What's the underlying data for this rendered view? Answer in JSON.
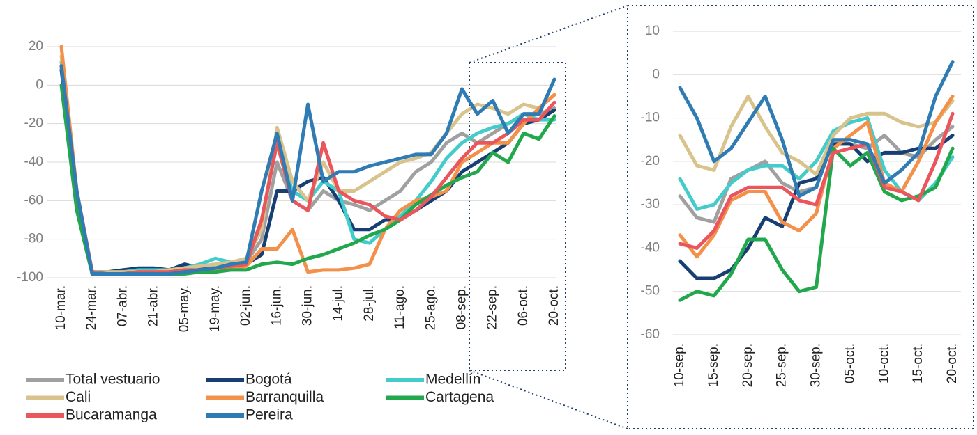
{
  "chart_data": [
    {
      "type": "line",
      "categories": [
        "10-mar.",
        null,
        "24-mar.",
        null,
        "07-abr.",
        null,
        "21-abr.",
        null,
        "05-may.",
        null,
        "19-may.",
        null,
        "02-jun.",
        null,
        "16-jun.",
        null,
        "30-jun.",
        null,
        "14-jul.",
        null,
        "28-jul.",
        null,
        "11-ago.",
        null,
        "25-ago.",
        null,
        "08-sep.",
        null,
        "22-sep.",
        null,
        "06-oct.",
        null,
        "20-oct."
      ],
      "ylim": [
        -100,
        20
      ],
      "yticks": [
        -100,
        -80,
        -60,
        -40,
        -20,
        0,
        20
      ],
      "grid": true,
      "series": [
        {
          "name": "Total vestuario",
          "color": "#a0a0a0",
          "values": [
            10,
            -60,
            -97,
            -97,
            -97,
            -97,
            -97,
            -97,
            -96,
            -95,
            -95,
            -94,
            -92,
            -80,
            -40,
            -60,
            -65,
            -55,
            -60,
            -62,
            -65,
            -60,
            -55,
            -45,
            -40,
            -30,
            -25,
            -30,
            -25,
            -20,
            -15,
            -15,
            -12
          ]
        },
        {
          "name": "Bogotá",
          "color": "#173f74",
          "values": [
            8,
            -60,
            -98,
            -97,
            -96,
            -95,
            -95,
            -96,
            -93,
            -95,
            -95,
            -94,
            -93,
            -88,
            -55,
            -55,
            -50,
            -48,
            -60,
            -75,
            -75,
            -70,
            -70,
            -65,
            -60,
            -55,
            -45,
            -40,
            -35,
            -30,
            -20,
            -18,
            -13
          ]
        },
        {
          "name": "Medellín",
          "color": "#44cccb",
          "values": [
            12,
            -55,
            -97,
            -97,
            -97,
            -96,
            -96,
            -96,
            -95,
            -93,
            -90,
            -92,
            -92,
            -70,
            -30,
            -55,
            -60,
            -50,
            -55,
            -80,
            -82,
            -75,
            -68,
            -60,
            -50,
            -38,
            -30,
            -25,
            -22,
            -20,
            -15,
            -18,
            -18
          ]
        },
        {
          "name": "Cali",
          "color": "#d8c38c",
          "values": [
            15,
            -58,
            -98,
            -97,
            -97,
            -97,
            -97,
            -96,
            -95,
            -94,
            -93,
            -92,
            -90,
            -75,
            -22,
            -50,
            -60,
            -40,
            -55,
            -55,
            -50,
            -45,
            -40,
            -38,
            -35,
            -25,
            -15,
            -10,
            -12,
            -15,
            -10,
            -12,
            -5
          ]
        },
        {
          "name": "Barranquilla",
          "color": "#f39049",
          "values": [
            20,
            -55,
            -98,
            -98,
            -98,
            -97,
            -97,
            -97,
            -97,
            -96,
            -96,
            -95,
            -94,
            -85,
            -85,
            -75,
            -97,
            -96,
            -96,
            -95,
            -93,
            -75,
            -65,
            -60,
            -58,
            -55,
            -40,
            -35,
            -30,
            -30,
            -20,
            -12,
            -5
          ]
        },
        {
          "name": "Cartagena",
          "color": "#21a84d",
          "values": [
            0,
            -65,
            -98,
            -98,
            -98,
            -98,
            -98,
            -98,
            -98,
            -97,
            -97,
            -96,
            -96,
            -93,
            -92,
            -93,
            -90,
            -88,
            -85,
            -82,
            -78,
            -75,
            -70,
            -62,
            -57,
            -52,
            -48,
            -45,
            -35,
            -40,
            -25,
            -28,
            -16
          ]
        },
        {
          "name": "Bucaramanga",
          "color": "#e9565c",
          "values": [
            10,
            -55,
            -97,
            -98,
            -98,
            -97,
            -97,
            -97,
            -96,
            -96,
            -95,
            -94,
            -93,
            -70,
            -30,
            -60,
            -65,
            -30,
            -55,
            -60,
            -62,
            -68,
            -70,
            -65,
            -58,
            -48,
            -38,
            -30,
            -30,
            -25,
            -18,
            -18,
            -9
          ]
        },
        {
          "name": "Pereira",
          "color": "#2f7bb4",
          "values": [
            10,
            -55,
            -98,
            -98,
            -98,
            -98,
            -98,
            -98,
            -97,
            -96,
            -95,
            -93,
            -92,
            -55,
            -25,
            -60,
            -10,
            -50,
            -45,
            -45,
            -42,
            -40,
            -38,
            -36,
            -36,
            -25,
            -2,
            -15,
            -8,
            -25,
            -15,
            -15,
            3
          ]
        }
      ]
    },
    {
      "type": "line",
      "categories": [
        "10-sep.",
        null,
        "15-sep.",
        null,
        "20-sep.",
        null,
        "25-sep.",
        null,
        "30-sep.",
        null,
        "05-oct.",
        null,
        "10-oct.",
        null,
        "15-oct.",
        null,
        "20-oct."
      ],
      "ylim": [
        -60,
        10
      ],
      "yticks": [
        -60,
        -50,
        -40,
        -30,
        -20,
        -10,
        0,
        10
      ],
      "grid": true,
      "series": [
        {
          "color": "#a0a0a0",
          "values": [
            -28,
            -33,
            -34,
            -24,
            -22,
            -20,
            -25,
            -27,
            -26,
            -15,
            -16,
            -17,
            -14,
            -18,
            -19,
            -15,
            -12
          ]
        },
        {
          "color": "#173f74",
          "values": [
            -43,
            -47,
            -47,
            -45,
            -40,
            -33,
            -35,
            -25,
            -24,
            -16,
            -16,
            -20,
            -18,
            -18,
            -17,
            -17,
            -14
          ]
        },
        {
          "color": "#44cccb",
          "values": [
            -24,
            -31,
            -30,
            -25,
            -22,
            -21,
            -21,
            -24,
            -20,
            -13,
            -11,
            -10,
            -22,
            -27,
            -29,
            -25,
            -19
          ]
        },
        {
          "color": "#d8c38c",
          "values": [
            -14,
            -21,
            -22,
            -12,
            -5,
            -12,
            -18,
            -20,
            -23,
            -14,
            -10,
            -9,
            -9,
            -11,
            -12,
            -11,
            -6
          ]
        },
        {
          "color": "#f39049",
          "values": [
            -37,
            -42,
            -37,
            -29,
            -27,
            -27,
            -34,
            -36,
            -32,
            -17,
            -14,
            -11,
            -25,
            -27,
            -20,
            -11,
            -5
          ]
        },
        {
          "color": "#21a84d",
          "values": [
            -52,
            -50,
            -51,
            -46,
            -38,
            -38,
            -45,
            -50,
            -49,
            -17,
            -21,
            -18,
            -27,
            -29,
            -28,
            -26,
            -17
          ]
        },
        {
          "color": "#e9565c",
          "values": [
            -39,
            -40,
            -36,
            -28,
            -26,
            -26,
            -26,
            -29,
            -30,
            -18,
            -17,
            -16,
            -26,
            -27,
            -29,
            -20,
            -9
          ]
        },
        {
          "color": "#2f7bb4",
          "values": [
            -3,
            -10,
            -20,
            -17,
            -11,
            -5,
            -15,
            -28,
            -26,
            -15,
            -15,
            -16,
            -25,
            -22,
            -18,
            -5,
            3
          ]
        }
      ]
    }
  ]
}
